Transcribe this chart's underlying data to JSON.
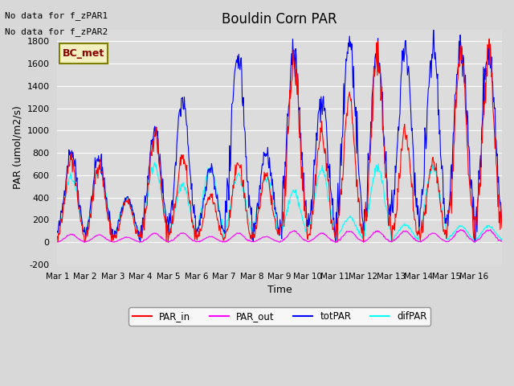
{
  "title": "Bouldin Corn PAR",
  "xlabel": "Time",
  "ylabel": "PAR (umol/m2/s)",
  "ylim": [
    -200,
    1900
  ],
  "background_color": "#d8d8d8",
  "plot_bg_color": "#dcdcdc",
  "legend_labels": [
    "PAR_in",
    "PAR_out",
    "totPAR",
    "difPAR"
  ],
  "legend_colors": [
    "red",
    "magenta",
    "blue",
    "cyan"
  ],
  "text_no_data1": "No data for f_zPAR1",
  "text_no_data2": "No data for f_zPAR2",
  "bc_met_label": "BC_met",
  "xtick_labels": [
    "Mar 1",
    "Mar 2",
    "Mar 3",
    "Mar 4",
    "Mar 5",
    "Mar 6",
    "Mar 7",
    "Mar 8",
    "Mar 9",
    "Mar 10",
    "Mar 11",
    "Mar 12",
    "Mar 13",
    "Mar 14",
    "Mar 15",
    "Mar 16"
  ],
  "ytick_values": [
    -200,
    0,
    200,
    400,
    600,
    800,
    1000,
    1200,
    1400,
    1600,
    1800
  ],
  "n_points_per_day": 48,
  "n_days": 16,
  "day_peaks_totPAR": [
    820,
    750,
    400,
    1000,
    1280,
    665,
    1700,
    810,
    1720,
    1265,
    1790,
    1700,
    1740,
    1730,
    1730,
    1720
  ],
  "day_peaks_PAR_in": [
    740,
    700,
    380,
    960,
    760,
    420,
    700,
    590,
    1600,
    990,
    1270,
    1680,
    990,
    730,
    1710,
    1700
  ],
  "day_peaks_PAR_out": [
    70,
    65,
    45,
    80,
    80,
    50,
    80,
    50,
    100,
    80,
    100,
    100,
    100,
    80,
    110,
    110
  ],
  "day_peaks_difPAR": [
    580,
    660,
    390,
    700,
    520,
    660,
    610,
    580,
    450,
    650,
    225,
    680,
    155,
    685,
    145,
    145
  ]
}
